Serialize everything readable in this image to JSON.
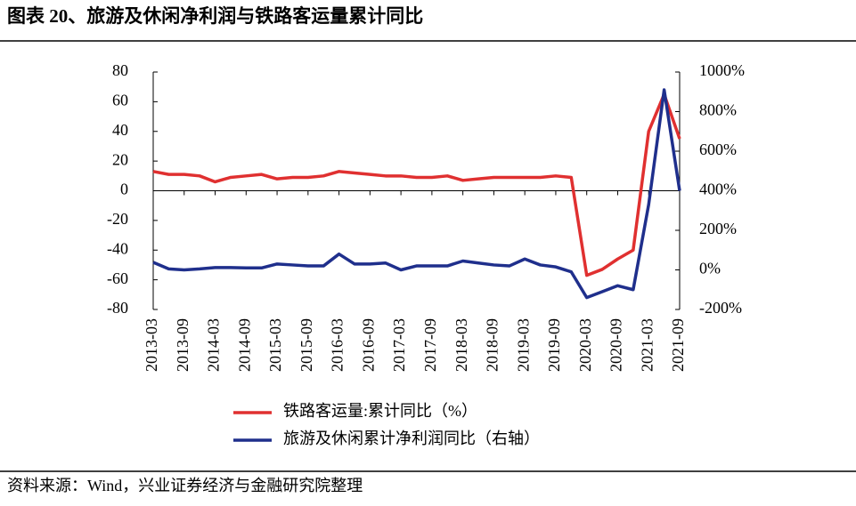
{
  "header": {
    "title": "图表 20、旅游及休闲净利润与铁路客运量累计同比"
  },
  "chart_data": {
    "type": "line",
    "categories": [
      "2013-03",
      null,
      "2013-09",
      null,
      "2014-03",
      null,
      "2014-09",
      null,
      "2015-03",
      null,
      "2015-09",
      null,
      "2016-03",
      null,
      "2016-09",
      null,
      "2017-03",
      null,
      "2017-09",
      null,
      "2018-03",
      null,
      "2018-09",
      null,
      "2019-03",
      null,
      "2019-09",
      null,
      "2020-03",
      null,
      "2020-09",
      null,
      "2021-03",
      null,
      "2021-09"
    ],
    "series": [
      {
        "name": "铁路客运量:累计同比（%）",
        "color": "#e03030",
        "values": [
          13,
          11,
          11,
          10,
          6,
          9,
          10,
          11,
          8,
          9,
          9,
          10,
          13,
          12,
          11,
          10,
          10,
          9,
          9,
          10,
          7,
          8,
          9,
          9,
          9,
          9,
          10,
          9,
          -57,
          -53,
          -46,
          -40,
          40,
          65,
          35
        ]
      },
      {
        "name": "旅游及休闲累计净利润同比（右轴）",
        "color": "#1f2f8c",
        "axis": "y2",
        "values": [
          38,
          5,
          0,
          5,
          12,
          12,
          10,
          10,
          30,
          25,
          20,
          20,
          80,
          30,
          30,
          35,
          0,
          20,
          20,
          20,
          45,
          35,
          25,
          20,
          55,
          25,
          15,
          -10,
          -140,
          -110,
          -80,
          -100,
          330,
          910,
          400
        ]
      }
    ],
    "ylim": [
      -80,
      80
    ],
    "yticks": [
      -80,
      -60,
      -40,
      -20,
      0,
      20,
      40,
      60,
      80
    ],
    "y2lim": [
      -200,
      1000
    ],
    "y2ticks": [
      {
        "value": -200,
        "label": "-200%"
      },
      {
        "value": 0,
        "label": "0%"
      },
      {
        "value": 200,
        "label": "200%"
      },
      {
        "value": 400,
        "label": "400%"
      },
      {
        "value": 600,
        "label": "600%"
      },
      {
        "value": 800,
        "label": "800%"
      },
      {
        "value": 1000,
        "label": "1000%"
      }
    ]
  },
  "footer": {
    "source": "资料来源：Wind，兴业证券经济与金融研究院整理"
  }
}
